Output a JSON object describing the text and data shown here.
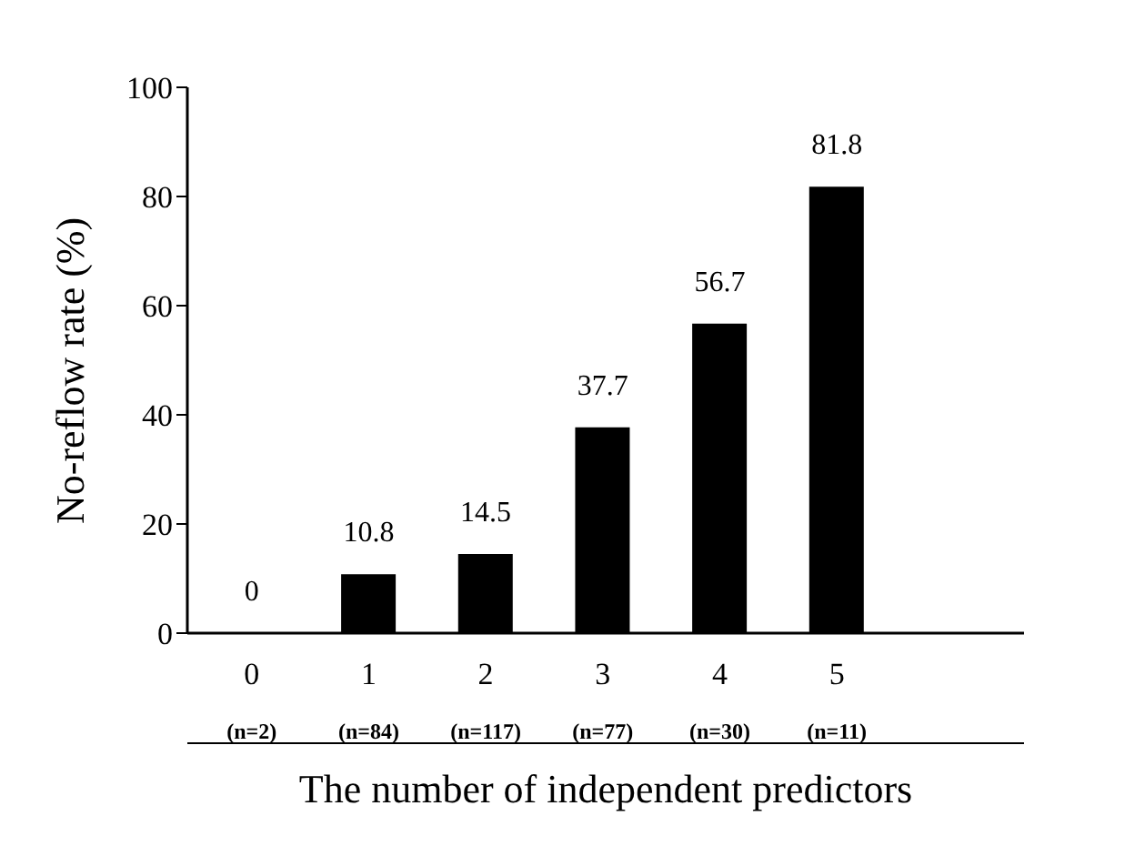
{
  "chart_data": {
    "type": "bar",
    "xlabel": "The number of independent predictors",
    "ylabel": "No-reflow rate (%)",
    "categories": [
      "0\n(n=2)",
      "1\n(n=84)",
      "2\n(n=117)",
      "3\n(n=77)",
      "4\n(n=30)",
      "5\n(n=11)"
    ],
    "values": [
      0,
      10.8,
      14.5,
      37.7,
      56.7,
      81.8
    ],
    "color": "#000000",
    "ylim": [
      0,
      100
    ],
    "yticks": [
      0,
      20,
      40,
      60,
      80,
      100
    ],
    "data_labels": true,
    "grid": false,
    "legend": false
  }
}
